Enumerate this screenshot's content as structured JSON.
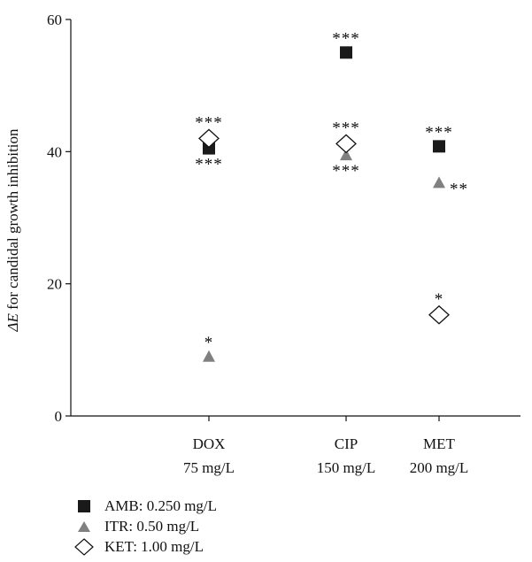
{
  "chart_data": {
    "type": "scatter",
    "title": "",
    "ylabel_prefix": "ΔE",
    "ylabel_suffix": " for candidal growth inhibition",
    "ylim": [
      0,
      60
    ],
    "yticks": [
      0,
      20,
      40,
      60
    ],
    "grid": false,
    "legend_position": "bottom-left",
    "categories": [
      {
        "name": "DOX",
        "dose": "75 mg/L"
      },
      {
        "name": "CIP",
        "dose": "150 mg/L"
      },
      {
        "name": "MET",
        "dose": "200 mg/L"
      }
    ],
    "series": [
      {
        "name": "AMB: 0.250 mg/L",
        "marker": "square",
        "color": "#1a1a1a",
        "points": [
          {
            "category": "DOX",
            "value": 40.5,
            "significance": "***",
            "label_pos": "below"
          },
          {
            "category": "CIP",
            "value": 55,
            "significance": "***",
            "label_pos": "above"
          },
          {
            "category": "MET",
            "value": 40.8,
            "significance": "***",
            "label_pos": "above"
          }
        ]
      },
      {
        "name": "ITR: 0.50 mg/L",
        "marker": "triangle",
        "color": "#808080",
        "points": [
          {
            "category": "DOX",
            "value": 9,
            "significance": "*",
            "label_pos": "above"
          },
          {
            "category": "CIP",
            "value": 39.5,
            "significance": "***",
            "label_pos": "below"
          },
          {
            "category": "MET",
            "value": 35.3,
            "significance": "**",
            "label_pos": "right"
          }
        ]
      },
      {
        "name": "KET: 1.00 mg/L",
        "marker": "diamond",
        "color": "#ffffff",
        "points": [
          {
            "category": "DOX",
            "value": 42,
            "significance": "***",
            "label_pos": "above"
          },
          {
            "category": "CIP",
            "value": 41.2,
            "significance": "***",
            "label_pos": "above"
          },
          {
            "category": "MET",
            "value": 15.3,
            "significance": "*",
            "label_pos": "above"
          }
        ]
      }
    ]
  }
}
